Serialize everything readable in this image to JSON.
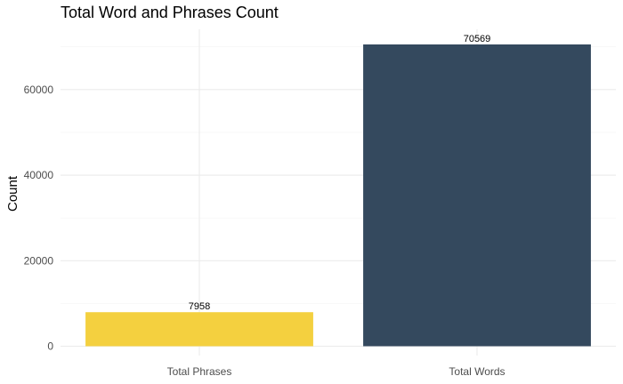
{
  "chart_data": {
    "type": "bar",
    "title": "Total Word and Phrases Count",
    "xlabel": "",
    "ylabel": "Count",
    "categories": [
      "Total Phrases",
      "Total Words"
    ],
    "values": [
      7958,
      70569
    ],
    "data_labels": [
      "7958",
      "70569"
    ],
    "colors": [
      "#F4D03F",
      "#34495E"
    ],
    "ylim": [
      0,
      73000
    ],
    "yticks": [
      0,
      20000,
      40000,
      60000
    ],
    "ytick_labels": [
      "0",
      "20000",
      "40000",
      "60000"
    ],
    "grid": true,
    "legend": "none"
  }
}
